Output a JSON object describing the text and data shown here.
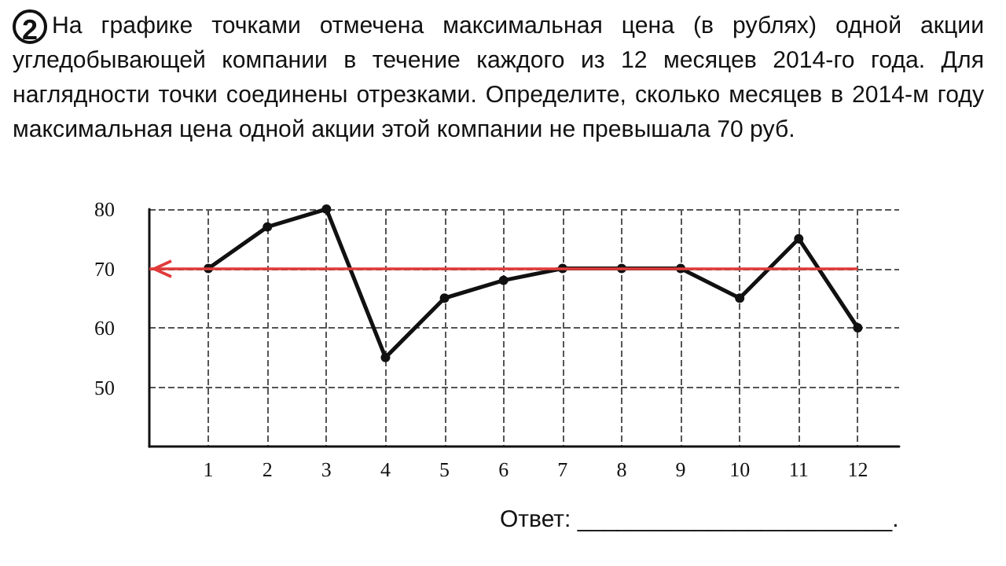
{
  "chart_data": {
    "type": "line",
    "title": "На графике точками отмечена максимальная цена (в рублях) одной акции угледобывающей компании в течение каждого из 12 месяцев 2014-го года. Для наглядности точки соединены отрезками. Определите, сколько месяцев в 2014-м году максимальная цена одной акции этой компании не превышала 70 руб.",
    "annotations": [
      "2",
      "Ответ: ________________________."
    ],
    "x": [
      1,
      2,
      3,
      4,
      5,
      6,
      7,
      8,
      9,
      10,
      11,
      12
    ],
    "series": [
      {
        "color": "#111111",
        "values": [
          70,
          77,
          80,
          55,
          65,
          68,
          70,
          70,
          70,
          65,
          75,
          60
        ]
      }
    ],
    "xlim": [
      0,
      12.7
    ],
    "xticks": [
      1,
      2,
      3,
      4,
      5,
      6,
      7,
      8,
      9,
      10,
      11,
      12
    ],
    "ylim": [
      40,
      80
    ],
    "yticks": [
      50,
      60,
      70,
      80
    ],
    "grid": true,
    "marker": "circle",
    "line_style": "solid",
    "ref_lines": [
      {
        "axis": "y",
        "value": 70,
        "color": "#e03a3a"
      }
    ]
  }
}
